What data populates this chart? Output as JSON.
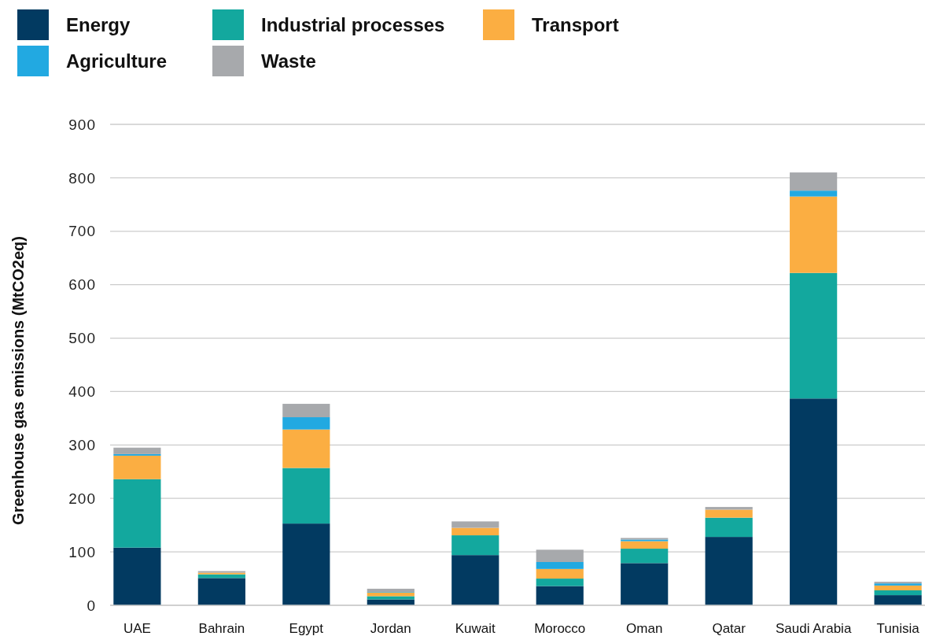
{
  "chart_data": {
    "type": "bar",
    "stacked": true,
    "ylabel": "Greenhouse gas emissions (MtCO2eq)",
    "categories": [
      "UAE",
      "Bahrain",
      "Egypt",
      "Jordan",
      "Kuwait",
      "Morocco",
      "Oman",
      "Qatar",
      "Saudi Arabia",
      "Tunisia"
    ],
    "series": [
      {
        "name": "Energy",
        "color": "#023a61",
        "values": [
          108,
          51,
          153,
          11,
          94,
          36,
          79,
          128,
          387,
          19
        ]
      },
      {
        "name": "Industrial processes",
        "color": "#13a89e",
        "values": [
          128,
          7,
          104,
          6,
          37,
          14,
          27,
          36,
          235,
          9
        ]
      },
      {
        "name": "Transport",
        "color": "#fbae42",
        "values": [
          44,
          3,
          72,
          7,
          14,
          18,
          14,
          15,
          143,
          9
        ]
      },
      {
        "name": "Agriculture",
        "color": "#22a9e1",
        "values": [
          3,
          null,
          23,
          1,
          null,
          13,
          3,
          null,
          11,
          4
        ]
      },
      {
        "name": "Waste",
        "color": "#a7a9ac",
        "values": [
          12,
          3,
          25,
          6,
          12,
          23,
          3,
          5,
          34,
          3
        ]
      }
    ],
    "ylim": [
      0,
      900
    ],
    "yticks": [
      0,
      100,
      200,
      300,
      400,
      500,
      600,
      700,
      800,
      900
    ],
    "grid": "y",
    "legend": "top"
  }
}
